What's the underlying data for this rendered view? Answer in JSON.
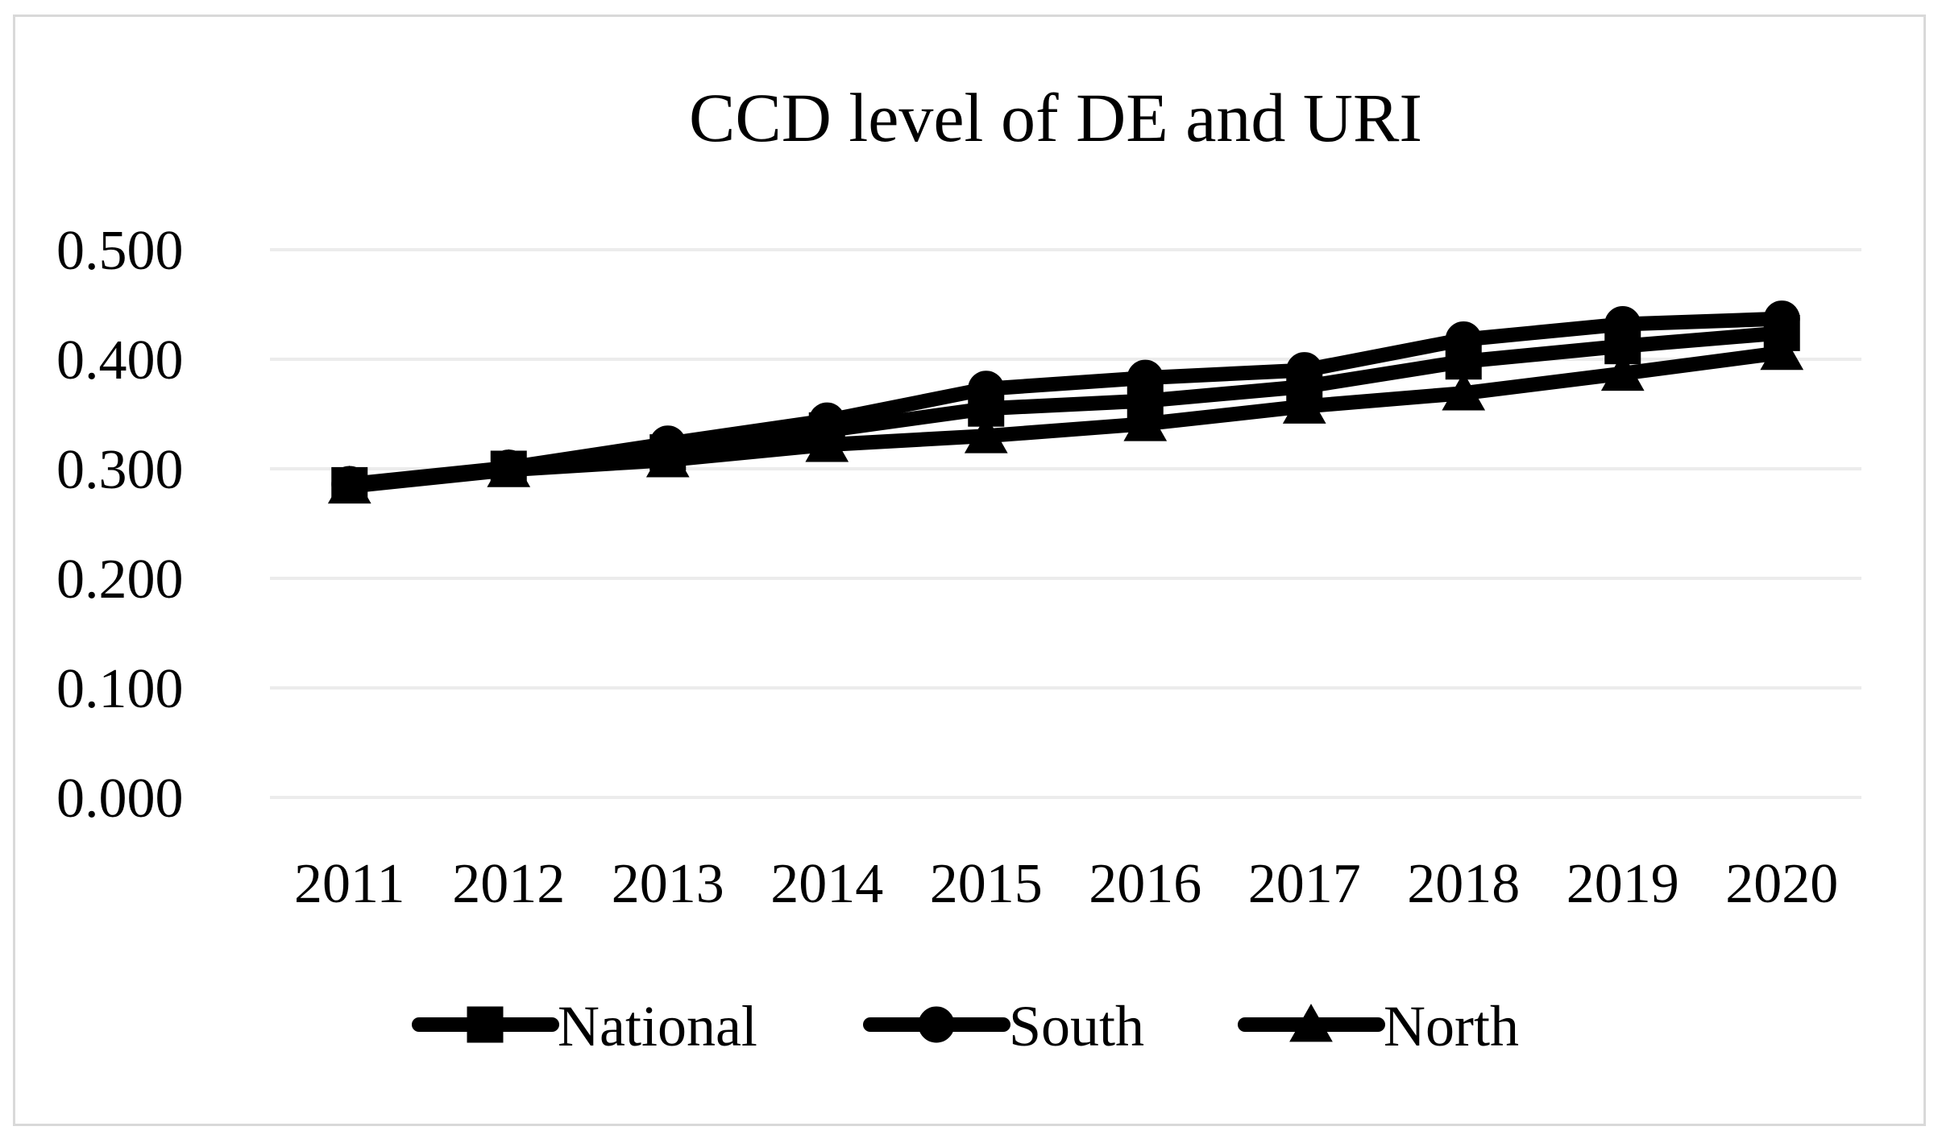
{
  "chart_data": {
    "type": "line",
    "title": "CCD level of DE and URI",
    "xlabel": "",
    "ylabel": "",
    "categories": [
      "2011",
      "2012",
      "2013",
      "2014",
      "2015",
      "2016",
      "2017",
      "2018",
      "2019",
      "2020"
    ],
    "ylim": [
      0,
      0.5
    ],
    "yticks": [
      "0.000",
      "0.100",
      "0.200",
      "0.300",
      "0.400",
      "0.500"
    ],
    "grid": true,
    "legend_position": "bottom",
    "series": [
      {
        "name": "National",
        "marker": "square",
        "values": [
          0.285,
          0.3,
          0.315,
          0.335,
          0.355,
          0.362,
          0.375,
          0.398,
          0.412,
          0.424
        ]
      },
      {
        "name": "South",
        "marker": "circle",
        "values": [
          0.286,
          0.301,
          0.323,
          0.344,
          0.373,
          0.383,
          0.39,
          0.418,
          0.432,
          0.437
        ]
      },
      {
        "name": "North",
        "marker": "triangle",
        "values": [
          0.284,
          0.299,
          0.308,
          0.322,
          0.33,
          0.341,
          0.357,
          0.369,
          0.387,
          0.406
        ]
      }
    ],
    "colors": {
      "series": "#000000",
      "grid": "#ececec",
      "frame": "#d9d9d9"
    }
  }
}
